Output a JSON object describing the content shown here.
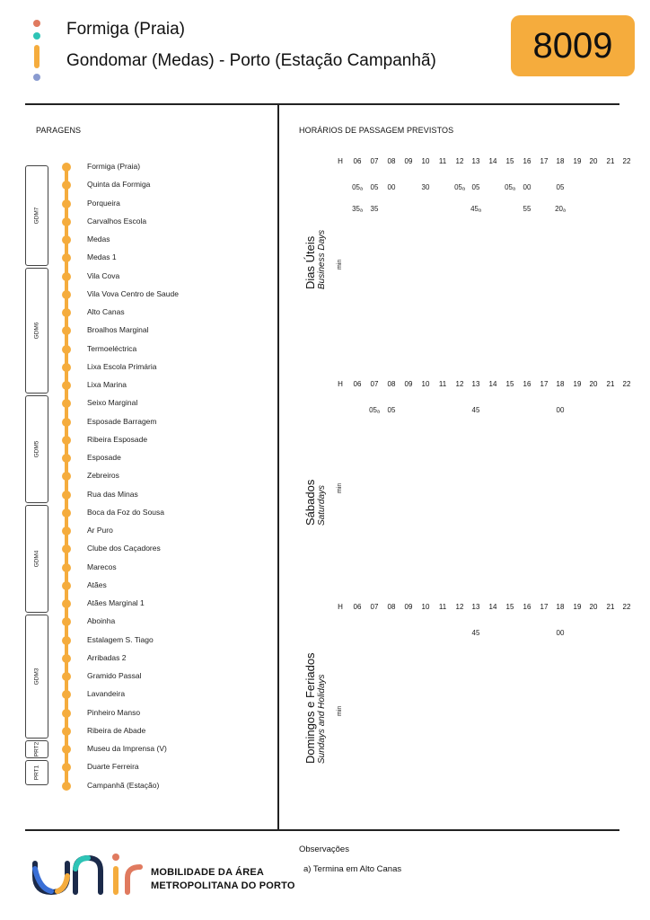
{
  "header": {
    "line1": "Formiga (Praia)",
    "line2": "Gondomar (Medas) - Porto (Estação Campanhã)",
    "route_number": "8009",
    "badge_color": "#f5ac3d"
  },
  "stops_section": {
    "title": "PARAGENS",
    "line_color": "#f5ac3d",
    "stops": [
      "Formiga (Praia)",
      "Quinta da Formiga",
      "Porqueira",
      "Carvalhos Escola",
      "Medas",
      "Medas 1",
      "Vila Cova",
      "Vila Vova Centro de Saude",
      "Alto Canas",
      "Broalhos Marginal",
      "Termoeléctrica",
      "Lixa Escola Primária",
      "Lixa Marina",
      "Seixo Marginal",
      "Esposade Barragem",
      "Ribeira Esposade",
      "Esposade",
      "Zebreiros",
      "Rua das Minas",
      "Boca da Foz do Sousa",
      "Ar Puro",
      "Clube dos Caçadores",
      "Marecos",
      "Atães",
      "Atães Marginal 1",
      "Aboinha",
      "Estalagem S. Tiago",
      "Arribadas 2",
      "Gramido Passal",
      "Lavandeira",
      "Pinheiro Manso",
      "Ribeira de Abade",
      "Museu da Imprensa (V)",
      "Duarte Ferreira",
      "Campanhã (Estação)"
    ],
    "zones": [
      "GDM7",
      "GDM6",
      "GDM5",
      "GDM4",
      "GDM3",
      "PRT2",
      "PRT1"
    ]
  },
  "timetable": {
    "title": "HORÁRIOS DE PASSAGEM PREVISTOS",
    "hours_header": [
      "H",
      "06",
      "07",
      "08",
      "09",
      "10",
      "11",
      "12",
      "13",
      "14",
      "15",
      "16",
      "17",
      "18",
      "19",
      "20",
      "21",
      "22"
    ],
    "min_label": "min",
    "days": [
      {
        "name_pt": "Dias Úteis",
        "name_en": "Business Days",
        "rows": [
          [
            "",
            "05ₐ",
            "05",
            "00",
            "",
            "30",
            "",
            "05ₐ",
            "05",
            "",
            "05ₐ",
            "00",
            "",
            "05",
            "",
            "",
            "",
            ""
          ],
          [
            "",
            "35ₐ",
            "35",
            "",
            "",
            "",
            "",
            "",
            "45ₐ",
            "",
            "",
            "55",
            "",
            "20ₐ",
            "",
            "",
            "",
            ""
          ]
        ]
      },
      {
        "name_pt": "Sábados",
        "name_en": "Saturdays",
        "rows": [
          [
            "",
            "",
            "05ₐ",
            "05",
            "",
            "",
            "",
            "",
            "45",
            "",
            "",
            "",
            "",
            "00",
            "",
            "",
            "",
            ""
          ]
        ]
      },
      {
        "name_pt": "Domingos e Feriados",
        "name_en": "Sundays and Holidays",
        "rows": [
          [
            "",
            "",
            "",
            "",
            "",
            "",
            "",
            "",
            "45",
            "",
            "",
            "",
            "",
            "00",
            "",
            "",
            "",
            ""
          ]
        ]
      }
    ]
  },
  "observations": {
    "title": "Observações",
    "notes": [
      "a) Termina em Alto Canas"
    ]
  },
  "footer": {
    "logo_line1": "MOBILIDADE DA ÁREA",
    "logo_line2": "METROPOLITANA DO PORTO"
  }
}
